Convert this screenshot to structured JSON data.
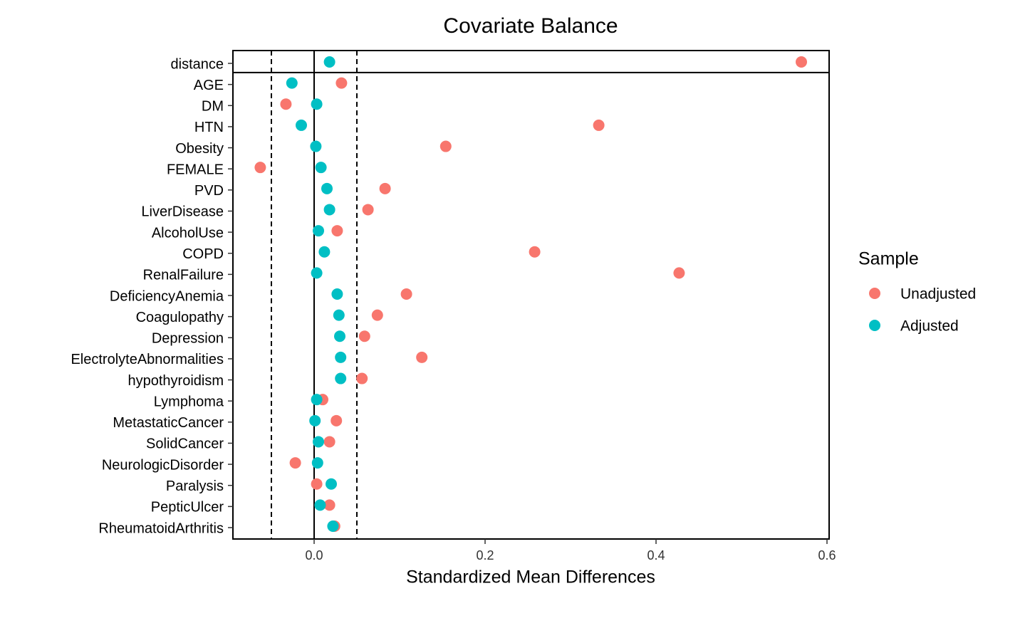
{
  "chart_data": {
    "type": "dot",
    "title": "Covariate Balance",
    "x_label": "Standardized Mean Differences",
    "legend_title": "Sample",
    "legend_position": "right",
    "categories": [
      "distance",
      "AGE",
      "DM",
      "HTN",
      "Obesity",
      "FEMALE",
      "PVD",
      "LiverDisease",
      "AlcoholUse",
      "COPD",
      "RenalFailure",
      "DeficiencyAnemia",
      "Coagulopathy",
      "Depression",
      "ElectrolyteAbnormalities",
      "hypothyroidism",
      "Lymphoma",
      "MetastaticCancer",
      "SolidCancer",
      "NeurologicDisorder",
      "Paralysis",
      "PepticUlcer",
      "RheumatoidArthritis"
    ],
    "series": [
      {
        "name": "Unadjusted",
        "color": "#F8766D",
        "values": [
          0.57,
          0.032,
          -0.033,
          0.333,
          0.154,
          -0.063,
          0.083,
          0.063,
          0.027,
          0.258,
          0.427,
          0.108,
          0.074,
          0.059,
          0.126,
          0.056,
          0.01,
          0.026,
          0.018,
          -0.022,
          0.003,
          0.018,
          0.024
        ]
      },
      {
        "name": "Adjusted",
        "color": "#00BFC4",
        "values": [
          0.018,
          -0.026,
          0.003,
          -0.015,
          0.002,
          0.008,
          0.015,
          0.018,
          0.005,
          0.012,
          0.003,
          0.027,
          0.029,
          0.03,
          0.031,
          0.031,
          0.003,
          0.001,
          0.005,
          0.004,
          0.02,
          0.007,
          0.022
        ]
      }
    ],
    "xlim": [
      -0.095,
      0.6025
    ],
    "xticks": [
      {
        "value": 0,
        "label": "0.0"
      },
      0.2,
      0.4,
      0.6
    ],
    "threshold_lines": [
      -0.05,
      0.05
    ],
    "zero_line": 0
  }
}
